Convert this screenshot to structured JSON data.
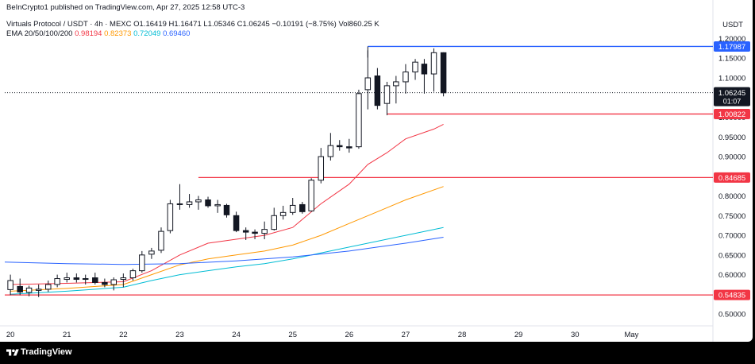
{
  "header": {
    "publish_line": "BeInCrypto1 published on TradingView.com, Apr 27, 2025 12:58 UTC-3",
    "symbol": "Virtuals Protocol / USDT · 4h · MEXC",
    "ohlc": {
      "o": "O1.16419",
      "h": "H1.16471",
      "l": "L1.05346",
      "c": "C1.06245",
      "change": "−0.10191 (−8.75%)",
      "vol": "Vol860.25 K"
    },
    "ema_label": "EMA 20/50/100/200",
    "ema_values": [
      "0.98194",
      "0.82373",
      "0.72049",
      "0.69460"
    ],
    "currency": "USDT"
  },
  "footer": {
    "brand": "TradingView",
    "logo_icon": "tradingview-logo-icon"
  },
  "colors": {
    "up": "#ffffff",
    "down": "#131722",
    "ema20": "#f23645",
    "ema50": "#ff9800",
    "ema100": "#00bcd4",
    "ema200": "#2962ff",
    "support": "#f23645",
    "resistance": "#2962ff"
  },
  "chart_data": {
    "type": "candlestick",
    "ylim": [
      0.48,
      1.205
    ],
    "ytick_values": [
      0.5,
      0.55,
      0.6,
      0.65,
      0.7,
      0.75,
      0.8,
      0.85,
      0.9,
      0.95,
      1.0,
      1.05,
      1.1,
      1.15,
      1.2
    ],
    "ytick_labels": [
      "0.50000",
      "0.55000",
      "0.60000",
      "0.65000",
      "0.70000",
      "0.75000",
      "0.80000",
      "0.85000",
      "0.90000",
      "0.95000",
      "1.00000",
      "1.05000",
      "1.10000",
      "1.15000",
      "1.20000"
    ],
    "xlim": [
      -0.1,
      12.4
    ],
    "x_ticks": [
      {
        "x": 0,
        "label": "20"
      },
      {
        "x": 1,
        "label": "21"
      },
      {
        "x": 2,
        "label": "22"
      },
      {
        "x": 3,
        "label": "23"
      },
      {
        "x": 4,
        "label": "24"
      },
      {
        "x": 5,
        "label": "25"
      },
      {
        "x": 6,
        "label": "26"
      },
      {
        "x": 7,
        "label": "27"
      },
      {
        "x": 8,
        "label": "28"
      },
      {
        "x": 9,
        "label": "29"
      },
      {
        "x": 10,
        "label": "30"
      },
      {
        "x": 11,
        "label": "May"
      }
    ],
    "candles": [
      {
        "t": 0.0,
        "o": 0.562,
        "h": 0.6,
        "l": 0.548,
        "c": 0.585
      },
      {
        "t": 0.17,
        "o": 0.57,
        "h": 0.59,
        "l": 0.548,
        "c": 0.556
      },
      {
        "t": 0.33,
        "o": 0.555,
        "h": 0.572,
        "l": 0.545,
        "c": 0.566
      },
      {
        "t": 0.5,
        "o": 0.56,
        "h": 0.575,
        "l": 0.543,
        "c": 0.563
      },
      {
        "t": 0.67,
        "o": 0.563,
        "h": 0.585,
        "l": 0.556,
        "c": 0.575
      },
      {
        "t": 0.83,
        "o": 0.575,
        "h": 0.6,
        "l": 0.568,
        "c": 0.59
      },
      {
        "t": 1.0,
        "o": 0.588,
        "h": 0.605,
        "l": 0.58,
        "c": 0.592
      },
      {
        "t": 1.17,
        "o": 0.592,
        "h": 0.603,
        "l": 0.58,
        "c": 0.588
      },
      {
        "t": 1.33,
        "o": 0.588,
        "h": 0.6,
        "l": 0.575,
        "c": 0.59
      },
      {
        "t": 1.5,
        "o": 0.592,
        "h": 0.605,
        "l": 0.575,
        "c": 0.58
      },
      {
        "t": 1.67,
        "o": 0.58,
        "h": 0.59,
        "l": 0.568,
        "c": 0.575
      },
      {
        "t": 1.83,
        "o": 0.575,
        "h": 0.593,
        "l": 0.56,
        "c": 0.587
      },
      {
        "t": 2.0,
        "o": 0.588,
        "h": 0.603,
        "l": 0.568,
        "c": 0.592
      },
      {
        "t": 2.17,
        "o": 0.592,
        "h": 0.615,
        "l": 0.585,
        "c": 0.61
      },
      {
        "t": 2.33,
        "o": 0.61,
        "h": 0.66,
        "l": 0.605,
        "c": 0.65
      },
      {
        "t": 2.5,
        "o": 0.652,
        "h": 0.668,
        "l": 0.64,
        "c": 0.66
      },
      {
        "t": 2.67,
        "o": 0.662,
        "h": 0.72,
        "l": 0.655,
        "c": 0.71
      },
      {
        "t": 2.83,
        "o": 0.712,
        "h": 0.79,
        "l": 0.705,
        "c": 0.78
      },
      {
        "t": 3.0,
        "o": 0.778,
        "h": 0.83,
        "l": 0.765,
        "c": 0.78
      },
      {
        "t": 3.17,
        "o": 0.778,
        "h": 0.805,
        "l": 0.77,
        "c": 0.785
      },
      {
        "t": 3.33,
        "o": 0.785,
        "h": 0.8,
        "l": 0.765,
        "c": 0.79
      },
      {
        "t": 3.5,
        "o": 0.79,
        "h": 0.798,
        "l": 0.77,
        "c": 0.775
      },
      {
        "t": 3.67,
        "o": 0.775,
        "h": 0.79,
        "l": 0.757,
        "c": 0.778
      },
      {
        "t": 3.83,
        "o": 0.776,
        "h": 0.78,
        "l": 0.745,
        "c": 0.752
      },
      {
        "t": 4.0,
        "o": 0.75,
        "h": 0.76,
        "l": 0.708,
        "c": 0.712
      },
      {
        "t": 4.17,
        "o": 0.712,
        "h": 0.72,
        "l": 0.688,
        "c": 0.708
      },
      {
        "t": 4.33,
        "o": 0.708,
        "h": 0.715,
        "l": 0.69,
        "c": 0.705
      },
      {
        "t": 4.5,
        "o": 0.705,
        "h": 0.735,
        "l": 0.69,
        "c": 0.715
      },
      {
        "t": 4.67,
        "o": 0.715,
        "h": 0.77,
        "l": 0.712,
        "c": 0.75
      },
      {
        "t": 4.83,
        "o": 0.75,
        "h": 0.775,
        "l": 0.74,
        "c": 0.758
      },
      {
        "t": 5.0,
        "o": 0.758,
        "h": 0.795,
        "l": 0.752,
        "c": 0.776
      },
      {
        "t": 5.17,
        "o": 0.778,
        "h": 0.785,
        "l": 0.755,
        "c": 0.76
      },
      {
        "t": 5.33,
        "o": 0.762,
        "h": 0.845,
        "l": 0.76,
        "c": 0.84
      },
      {
        "t": 5.5,
        "o": 0.84,
        "h": 0.922,
        "l": 0.832,
        "c": 0.9
      },
      {
        "t": 5.67,
        "o": 0.9,
        "h": 0.96,
        "l": 0.89,
        "c": 0.928
      },
      {
        "t": 5.83,
        "o": 0.928,
        "h": 0.942,
        "l": 0.915,
        "c": 0.925
      },
      {
        "t": 6.0,
        "o": 0.925,
        "h": 0.945,
        "l": 0.91,
        "c": 0.922
      },
      {
        "t": 6.17,
        "o": 0.925,
        "h": 1.07,
        "l": 0.92,
        "c": 1.06
      },
      {
        "t": 6.33,
        "o": 1.07,
        "h": 1.17,
        "l": 1.02,
        "c": 1.1
      },
      {
        "t": 6.5,
        "o": 1.105,
        "h": 1.125,
        "l": 1.02,
        "c": 1.03
      },
      {
        "t": 6.67,
        "o": 1.035,
        "h": 1.09,
        "l": 1.005,
        "c": 1.08
      },
      {
        "t": 6.83,
        "o": 1.08,
        "h": 1.105,
        "l": 1.035,
        "c": 1.09
      },
      {
        "t": 7.0,
        "o": 1.09,
        "h": 1.135,
        "l": 1.06,
        "c": 1.115
      },
      {
        "t": 7.17,
        "o": 1.115,
        "h": 1.148,
        "l": 1.095,
        "c": 1.14
      },
      {
        "t": 7.33,
        "o": 1.135,
        "h": 1.148,
        "l": 1.06,
        "c": 1.11
      },
      {
        "t": 7.5,
        "o": 1.11,
        "h": 1.175,
        "l": 1.065,
        "c": 1.164
      },
      {
        "t": 7.67,
        "o": 1.164,
        "h": 1.165,
        "l": 1.053,
        "c": 1.062
      }
    ],
    "ema": [
      {
        "name": "EMA 20",
        "color": "#f23645",
        "points": [
          [
            0.0,
            0.575
          ],
          [
            1.0,
            0.578
          ],
          [
            2.0,
            0.582
          ],
          [
            2.5,
            0.61
          ],
          [
            3.0,
            0.65
          ],
          [
            3.5,
            0.68
          ],
          [
            4.0,
            0.69
          ],
          [
            4.5,
            0.7
          ],
          [
            5.0,
            0.72
          ],
          [
            5.5,
            0.78
          ],
          [
            6.0,
            0.83
          ],
          [
            6.33,
            0.88
          ],
          [
            6.67,
            0.91
          ],
          [
            7.0,
            0.945
          ],
          [
            7.5,
            0.97
          ],
          [
            7.67,
            0.982
          ]
        ]
      },
      {
        "name": "EMA 50",
        "color": "#ff9800",
        "points": [
          [
            0.0,
            0.558
          ],
          [
            1.0,
            0.565
          ],
          [
            2.0,
            0.575
          ],
          [
            2.5,
            0.6
          ],
          [
            3.0,
            0.625
          ],
          [
            3.5,
            0.64
          ],
          [
            4.0,
            0.65
          ],
          [
            4.5,
            0.66
          ],
          [
            5.0,
            0.675
          ],
          [
            5.5,
            0.7
          ],
          [
            6.0,
            0.73
          ],
          [
            6.5,
            0.76
          ],
          [
            7.0,
            0.79
          ],
          [
            7.67,
            0.824
          ]
        ]
      },
      {
        "name": "EMA 100",
        "color": "#00bcd4",
        "points": [
          [
            0.0,
            0.55
          ],
          [
            1.0,
            0.558
          ],
          [
            2.0,
            0.568
          ],
          [
            2.5,
            0.585
          ],
          [
            3.0,
            0.6
          ],
          [
            3.5,
            0.61
          ],
          [
            4.0,
            0.62
          ],
          [
            4.5,
            0.628
          ],
          [
            5.0,
            0.64
          ],
          [
            5.5,
            0.655
          ],
          [
            6.0,
            0.67
          ],
          [
            6.5,
            0.685
          ],
          [
            7.0,
            0.7
          ],
          [
            7.67,
            0.72
          ]
        ]
      },
      {
        "name": "EMA 200",
        "color": "#2962ff",
        "points": [
          [
            -0.1,
            0.632
          ],
          [
            1.0,
            0.628
          ],
          [
            2.0,
            0.626
          ],
          [
            3.0,
            0.628
          ],
          [
            4.0,
            0.635
          ],
          [
            5.0,
            0.645
          ],
          [
            6.0,
            0.66
          ],
          [
            6.5,
            0.67
          ],
          [
            7.0,
            0.68
          ],
          [
            7.67,
            0.695
          ]
        ]
      }
    ],
    "levels": [
      {
        "value": 1.17987,
        "label": "1.17987",
        "color": "#2962ff",
        "from": 6.33
      },
      {
        "value": 1.00822,
        "label": "1.00822",
        "color": "#f23645",
        "from": 6.67
      },
      {
        "value": 0.84685,
        "label": "0.84685",
        "color": "#f23645",
        "from": 3.33
      },
      {
        "value": 0.54835,
        "label": "0.54835",
        "color": "#f23645",
        "from": -0.1
      }
    ],
    "current_price": {
      "value": 1.06245,
      "label": "1.06245",
      "countdown": "01:07"
    }
  }
}
